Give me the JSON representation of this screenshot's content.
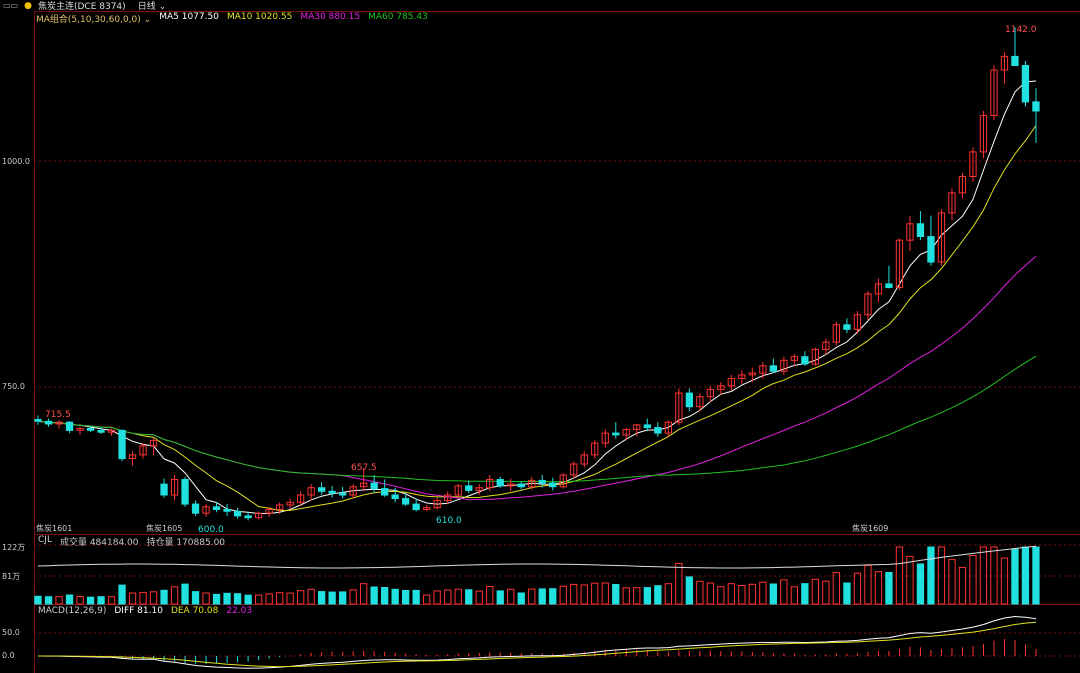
{
  "topbar": {
    "icon": "window-controls-icon",
    "title": "焦炭主连(DCE 8374)",
    "period": "日线"
  },
  "ma_legend": {
    "config": "MA组合(5,10,30,60,0,0)",
    "items": [
      {
        "label": "MA5 1077.50",
        "color": "#ffffff"
      },
      {
        "label": "MA10 1020.55",
        "color": "#e0e020"
      },
      {
        "label": "MA30 880.15",
        "color": "#e020e0"
      },
      {
        "label": "MA60 785.43",
        "color": "#20c020"
      }
    ]
  },
  "price_axis": [
    "1000.0",
    "750.0"
  ],
  "price_annotations": {
    "high": "1142.0",
    "left_high": "715.5",
    "mid_high": "657.5",
    "low1": "600.0",
    "low2": "610.0"
  },
  "contract_labels": [
    "焦炭1601",
    "焦炭1605",
    "焦炭1609"
  ],
  "volume_panel": {
    "title": "CJL",
    "volume": "成交量 484184.00",
    "open_interest": "持仓量 170885.00",
    "axis": [
      "122万",
      "81万"
    ]
  },
  "macd_panel": {
    "title": "MACD(12,26,9)",
    "diff": "DIFF 81.10",
    "dea": "DEA 70.08",
    "macd": "22.03",
    "axis": [
      "50.0",
      "0.0"
    ]
  },
  "colors": {
    "up": "#ff3232",
    "down": "#20e0e0",
    "grid": "#7a1010"
  },
  "chart_data": {
    "type": "candlestick",
    "series": [
      {
        "name": "MA5",
        "value": 1077.5
      },
      {
        "name": "MA10",
        "value": 1020.55
      },
      {
        "name": "MA30",
        "value": 880.15
      },
      {
        "name": "MA60",
        "value": 785.43
      }
    ],
    "ohlc": [
      [
        711,
        715.5,
        705,
        709
      ],
      [
        709,
        712,
        703,
        706
      ],
      [
        706,
        710,
        701,
        708
      ],
      [
        708,
        709,
        696,
        699
      ],
      [
        699,
        703,
        694,
        701
      ],
      [
        701,
        704,
        697,
        699
      ],
      [
        699,
        703,
        695,
        697
      ],
      [
        697,
        701,
        693,
        699
      ],
      [
        699,
        700,
        665,
        668
      ],
      [
        668,
        676,
        660,
        672
      ],
      [
        672,
        685,
        668,
        682
      ],
      [
        682,
        690,
        672,
        688
      ],
      [
        640,
        646,
        625,
        628
      ],
      [
        628,
        650,
        622,
        645
      ],
      [
        645,
        648,
        615,
        618
      ],
      [
        618,
        622,
        605,
        608
      ],
      [
        608,
        618,
        604,
        615
      ],
      [
        615,
        620,
        609,
        612
      ],
      [
        612,
        618,
        605,
        610
      ],
      [
        610,
        614,
        602,
        605
      ],
      [
        605,
        609,
        600,
        603
      ],
      [
        603,
        610,
        601,
        608
      ],
      [
        608,
        615,
        604,
        612
      ],
      [
        612,
        620,
        607,
        617
      ],
      [
        617,
        624,
        612,
        620
      ],
      [
        620,
        632,
        616,
        628
      ],
      [
        628,
        640,
        622,
        636
      ],
      [
        636,
        642,
        628,
        632
      ],
      [
        632,
        638,
        625,
        630
      ],
      [
        630,
        637,
        624,
        628
      ],
      [
        628,
        640,
        624,
        637
      ],
      [
        637,
        657.5,
        632,
        641
      ],
      [
        641,
        650,
        630,
        635
      ],
      [
        635,
        645,
        626,
        628
      ],
      [
        628,
        636,
        620,
        624
      ],
      [
        624,
        630,
        616,
        618
      ],
      [
        618,
        624,
        610,
        612
      ],
      [
        612,
        617,
        610.0,
        614
      ],
      [
        614,
        625,
        612,
        622
      ],
      [
        622,
        632,
        618,
        628
      ],
      [
        628,
        640,
        625,
        638
      ],
      [
        638,
        644,
        630,
        633
      ],
      [
        633,
        640,
        628,
        636
      ],
      [
        636,
        650,
        632,
        645
      ],
      [
        645,
        648,
        636,
        638
      ],
      [
        638,
        646,
        632,
        640
      ],
      [
        640,
        643,
        634,
        637
      ],
      [
        637,
        648,
        634,
        644
      ],
      [
        644,
        650,
        636,
        641
      ],
      [
        641,
        647,
        633,
        637
      ],
      [
        637,
        652,
        635,
        650
      ],
      [
        650,
        665,
        646,
        662
      ],
      [
        662,
        676,
        658,
        672
      ],
      [
        672,
        688,
        668,
        685
      ],
      [
        685,
        700,
        680,
        696
      ],
      [
        696,
        708,
        690,
        694
      ],
      [
        694,
        702,
        688,
        700
      ],
      [
        700,
        706,
        692,
        705
      ],
      [
        705,
        712,
        698,
        702
      ],
      [
        702,
        708,
        692,
        696
      ],
      [
        696,
        710,
        692,
        708
      ],
      [
        708,
        745,
        705,
        740
      ],
      [
        740,
        745,
        720,
        725
      ],
      [
        725,
        740,
        720,
        736
      ],
      [
        736,
        748,
        730,
        744
      ],
      [
        744,
        752,
        738,
        748
      ],
      [
        748,
        760,
        743,
        756
      ],
      [
        756,
        765,
        750,
        760
      ],
      [
        760,
        768,
        752,
        762
      ],
      [
        762,
        774,
        756,
        770
      ],
      [
        770,
        778,
        762,
        764
      ],
      [
        764,
        780,
        760,
        776
      ],
      [
        776,
        783,
        770,
        780
      ],
      [
        780,
        786,
        770,
        772
      ],
      [
        772,
        790,
        770,
        788
      ],
      [
        788,
        800,
        782,
        796
      ],
      [
        796,
        818,
        792,
        815
      ],
      [
        815,
        822,
        806,
        810
      ],
      [
        810,
        830,
        805,
        826
      ],
      [
        826,
        852,
        820,
        849
      ],
      [
        849,
        866,
        840,
        860
      ],
      [
        860,
        880,
        855,
        856
      ],
      [
        856,
        910,
        853,
        908
      ],
      [
        908,
        935,
        896,
        926
      ],
      [
        926,
        940,
        908,
        912
      ],
      [
        912,
        935,
        880,
        884
      ],
      [
        884,
        942,
        880,
        938
      ],
      [
        938,
        965,
        930,
        960
      ],
      [
        960,
        982,
        954,
        978
      ],
      [
        978,
        1010,
        972,
        1005
      ],
      [
        1005,
        1050,
        998,
        1045
      ],
      [
        1045,
        1100,
        1040,
        1095
      ],
      [
        1095,
        1115,
        1080,
        1110
      ],
      [
        1110,
        1142,
        1100,
        1100
      ],
      [
        1100,
        1105,
        1055,
        1060
      ],
      [
        1060,
        1075,
        1015,
        1050
      ]
    ],
    "ylim": [
      595,
      1150
    ]
  }
}
